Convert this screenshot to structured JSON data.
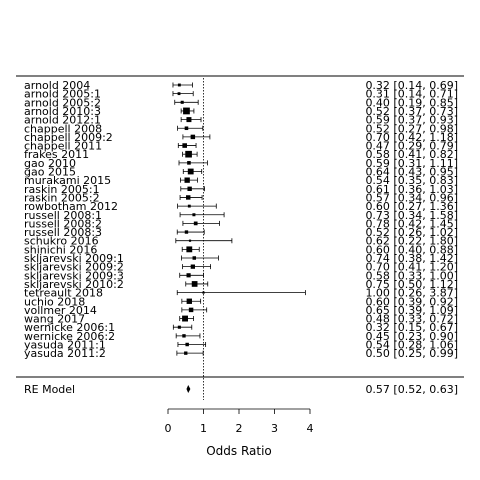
{
  "chart_data": {
    "type": "forest",
    "xlabel": "Odds Ratio",
    "xticks": [
      0,
      1,
      2,
      3,
      4
    ],
    "reference_line": 1,
    "studies": [
      {
        "label": "arnold 2004",
        "or": 0.32,
        "lo": 0.14,
        "hi": 0.69,
        "text": "0.32 [0.14, 0.69]"
      },
      {
        "label": "arnold 2005:1",
        "or": 0.31,
        "lo": 0.14,
        "hi": 0.71,
        "text": "0.31 [0.14, 0.71]"
      },
      {
        "label": "arnold 2005:2",
        "or": 0.4,
        "lo": 0.19,
        "hi": 0.85,
        "text": "0.40 [0.19, 0.85]"
      },
      {
        "label": "arnold 2010:3",
        "or": 0.52,
        "lo": 0.37,
        "hi": 0.73,
        "text": "0.52 [0.37, 0.73]"
      },
      {
        "label": "arnold 2012:1",
        "or": 0.59,
        "lo": 0.37,
        "hi": 0.93,
        "text": "0.59 [0.37, 0.93]"
      },
      {
        "label": "chappell 2008",
        "or": 0.52,
        "lo": 0.27,
        "hi": 0.98,
        "text": "0.52 [0.27, 0.98]"
      },
      {
        "label": "chappell 2009:2",
        "or": 0.7,
        "lo": 0.42,
        "hi": 1.18,
        "text": "0.70 [0.42, 1.18]"
      },
      {
        "label": "chappell 2011",
        "or": 0.47,
        "lo": 0.29,
        "hi": 0.79,
        "text": "0.47 [0.29, 0.79]"
      },
      {
        "label": "frakes 2011",
        "or": 0.58,
        "lo": 0.41,
        "hi": 0.82,
        "text": "0.58 [0.41, 0.82]"
      },
      {
        "label": "gao 2010",
        "or": 0.59,
        "lo": 0.31,
        "hi": 1.11,
        "text": "0.59 [0.31, 1.11]"
      },
      {
        "label": "gao 2015",
        "or": 0.64,
        "lo": 0.43,
        "hi": 0.95,
        "text": "0.64 [0.43, 0.95]"
      },
      {
        "label": "murakami 2015",
        "or": 0.54,
        "lo": 0.35,
        "hi": 0.83,
        "text": "0.54 [0.35, 0.83]"
      },
      {
        "label": "raskin 2005:1",
        "or": 0.61,
        "lo": 0.36,
        "hi": 1.03,
        "text": "0.61 [0.36, 1.03]"
      },
      {
        "label": "raskin 2005:2",
        "or": 0.57,
        "lo": 0.34,
        "hi": 0.96,
        "text": "0.57 [0.34, 0.96]"
      },
      {
        "label": "rowbotham 2012",
        "or": 0.6,
        "lo": 0.27,
        "hi": 1.36,
        "text": "0.60 [0.27, 1.36]"
      },
      {
        "label": "russell 2008:1",
        "or": 0.73,
        "lo": 0.34,
        "hi": 1.58,
        "text": "0.73 [0.34, 1.58]"
      },
      {
        "label": "russell 2008:2",
        "or": 0.78,
        "lo": 0.42,
        "hi": 1.45,
        "text": "0.78 [0.42, 1.45]"
      },
      {
        "label": "russell 2008:3",
        "or": 0.52,
        "lo": 0.26,
        "hi": 1.02,
        "text": "0.52 [0.26, 1.02]"
      },
      {
        "label": "schukro 2016",
        "or": 0.62,
        "lo": 0.22,
        "hi": 1.8,
        "text": "0.62 [0.22, 1.80]"
      },
      {
        "label": "shinichi 2016",
        "or": 0.6,
        "lo": 0.4,
        "hi": 0.88,
        "text": "0.60 [0.40, 0.88]"
      },
      {
        "label": "skljarevski 2009:1",
        "or": 0.74,
        "lo": 0.38,
        "hi": 1.42,
        "text": "0.74 [0.38, 1.42]"
      },
      {
        "label": "skljarevski 2009:2",
        "or": 0.7,
        "lo": 0.41,
        "hi": 1.2,
        "text": "0.70 [0.41, 1.20]"
      },
      {
        "label": "skljarevski 2009:3",
        "or": 0.58,
        "lo": 0.33,
        "hi": 1.0,
        "text": "0.58 [0.33, 1.00]"
      },
      {
        "label": "skljarevski 2010:2",
        "or": 0.75,
        "lo": 0.5,
        "hi": 1.12,
        "text": "0.75 [0.50, 1.12]"
      },
      {
        "label": "tetreault 2018",
        "or": 1.0,
        "lo": 0.26,
        "hi": 3.87,
        "text": "1.00 [0.26, 3.87]"
      },
      {
        "label": "uchio 2018",
        "or": 0.6,
        "lo": 0.39,
        "hi": 0.92,
        "text": "0.60 [0.39, 0.92]"
      },
      {
        "label": "vollmer 2014",
        "or": 0.65,
        "lo": 0.39,
        "hi": 1.09,
        "text": "0.65 [0.39, 1.09]"
      },
      {
        "label": "wang 2017",
        "or": 0.48,
        "lo": 0.33,
        "hi": 0.72,
        "text": "0.48 [0.33, 0.72]"
      },
      {
        "label": "wernicke 2006:1",
        "or": 0.32,
        "lo": 0.15,
        "hi": 0.67,
        "text": "0.32 [0.15, 0.67]"
      },
      {
        "label": "wernicke 2006:2",
        "or": 0.45,
        "lo": 0.23,
        "hi": 0.9,
        "text": "0.45 [0.23, 0.90]"
      },
      {
        "label": "yasuda 2011:1",
        "or": 0.54,
        "lo": 0.28,
        "hi": 1.06,
        "text": "0.54 [0.28, 1.06]"
      },
      {
        "label": "yasuda 2011:2",
        "or": 0.5,
        "lo": 0.25,
        "hi": 0.99,
        "text": "0.50 [0.25, 0.99]"
      }
    ],
    "summary": {
      "label": "RE Model",
      "or": 0.57,
      "lo": 0.52,
      "hi": 0.63,
      "text": "0.57 [0.52, 0.63]"
    }
  }
}
